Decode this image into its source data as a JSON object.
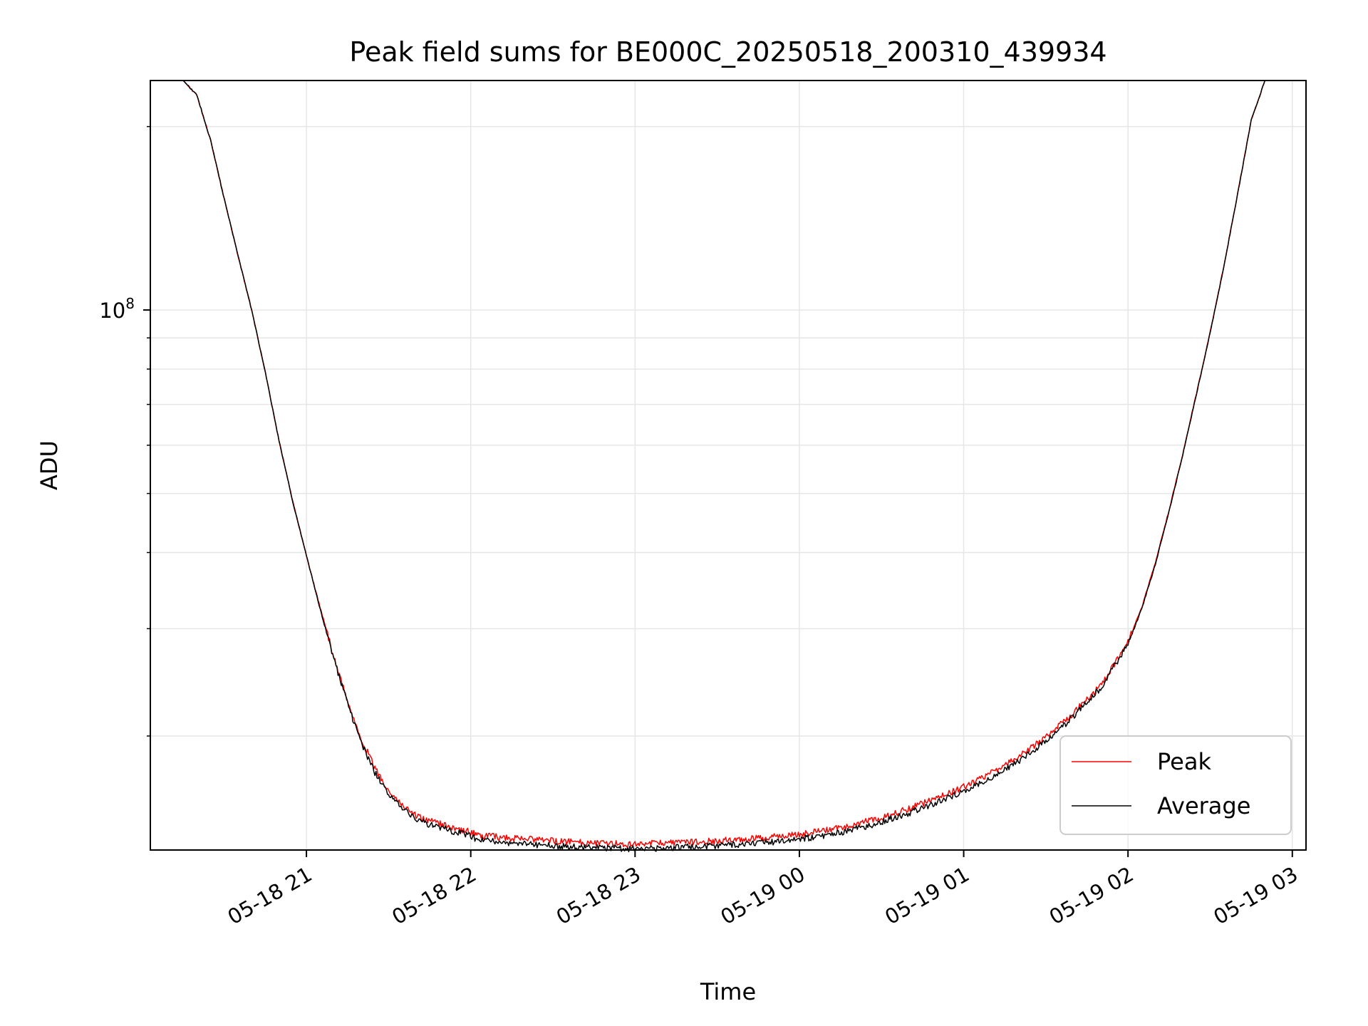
{
  "chart_data": {
    "type": "line",
    "title": "Peak field sums for BE000C_20250518_200310_439934",
    "xlabel": "Time",
    "ylabel": "ADU",
    "yscale": "log",
    "ylim": [
      13000000,
      238000000
    ],
    "xlim": [
      "2025-05-18 20:03",
      "2025-05-19 03:05"
    ],
    "xticks": [
      "05-18 21",
      "05-18 22",
      "05-18 23",
      "05-19 00",
      "05-19 01",
      "05-19 02",
      "05-19 03"
    ],
    "xtick_values": [
      "2025-05-18 21:00",
      "2025-05-18 22:00",
      "2025-05-18 23:00",
      "2025-05-19 00:00",
      "2025-05-19 01:00",
      "2025-05-19 02:00",
      "2025-05-19 03:00"
    ],
    "ytick_labels": [
      {
        "value": 100000000,
        "base": "10",
        "exp": "8"
      }
    ],
    "grid": true,
    "legend": {
      "placement": "bottom-right"
    },
    "x": [
      "2025-05-18 20:03",
      "2025-05-18 20:15",
      "2025-05-18 20:20",
      "2025-05-18 20:25",
      "2025-05-18 20:30",
      "2025-05-18 20:35",
      "2025-05-18 20:40",
      "2025-05-18 20:45",
      "2025-05-18 20:50",
      "2025-05-18 20:55",
      "2025-05-18 21:00",
      "2025-05-18 21:05",
      "2025-05-18 21:10",
      "2025-05-18 21:15",
      "2025-05-18 21:20",
      "2025-05-18 21:25",
      "2025-05-18 21:30",
      "2025-05-18 21:35",
      "2025-05-18 21:40",
      "2025-05-18 21:45",
      "2025-05-18 21:50",
      "2025-05-18 21:55",
      "2025-05-18 22:00",
      "2025-05-18 22:03",
      "2025-05-18 22:10",
      "2025-05-18 22:20",
      "2025-05-18 22:30",
      "2025-05-18 22:40",
      "2025-05-18 22:50",
      "2025-05-18 23:00",
      "2025-05-18 23:10",
      "2025-05-18 23:20",
      "2025-05-18 23:30",
      "2025-05-18 23:40",
      "2025-05-18 23:50",
      "2025-05-19 00:00",
      "2025-05-19 00:10",
      "2025-05-19 00:20",
      "2025-05-19 00:30",
      "2025-05-19 00:40",
      "2025-05-19 00:50",
      "2025-05-19 01:00",
      "2025-05-19 01:10",
      "2025-05-19 01:20",
      "2025-05-19 01:30",
      "2025-05-19 01:40",
      "2025-05-19 01:50",
      "2025-05-19 02:00",
      "2025-05-19 02:05",
      "2025-05-19 02:10",
      "2025-05-19 02:15",
      "2025-05-19 02:20",
      "2025-05-19 02:25",
      "2025-05-19 02:30",
      "2025-05-19 02:35",
      "2025-05-19 02:40",
      "2025-05-19 02:45",
      "2025-05-19 02:50",
      "2025-05-19 03:05"
    ],
    "series": [
      {
        "name": "Peak",
        "color": "#ff0000",
        "values": [
          238000000,
          238000000,
          225000000,
          190000000,
          152000000,
          123000000,
          100000000,
          79000000,
          61000000,
          48500000,
          39500000,
          32500000,
          27000000,
          22800000,
          19800000,
          17700000,
          16300000,
          15400000,
          14800000,
          14500000,
          14300000,
          14100000,
          13900000,
          13750000,
          13650000,
          13550000,
          13450000,
          13400000,
          13350000,
          13300000,
          13350000,
          13400000,
          13450000,
          13550000,
          13650000,
          13800000,
          14000000,
          14300000,
          14700000,
          15200000,
          15800000,
          16500000,
          17400000,
          18500000,
          19900000,
          21800000,
          24200000,
          28500000,
          32500000,
          38500000,
          47000000,
          58000000,
          73000000,
          92000000,
          118000000,
          155000000,
          205000000,
          238000000,
          238000000
        ]
      },
      {
        "name": "Average",
        "color": "#000000",
        "values": [
          238000000,
          238000000,
          225000000,
          190000000,
          152000000,
          123000000,
          100000000,
          79000000,
          61000000,
          48500000,
          39500000,
          32300000,
          26800000,
          22600000,
          19500000,
          17400000,
          16000000,
          15200000,
          14600000,
          14300000,
          14100000,
          13900000,
          13700000,
          13500000,
          13400000,
          13300000,
          13200000,
          13150000,
          13100000,
          13050000,
          13100000,
          13150000,
          13200000,
          13300000,
          13400000,
          13550000,
          13750000,
          14050000,
          14450000,
          14950000,
          15550000,
          16250000,
          17100000,
          18200000,
          19600000,
          21500000,
          24000000,
          28300000,
          32300000,
          38300000,
          46800000,
          57800000,
          72800000,
          91800000,
          117800000,
          154800000,
          204800000,
          238000000,
          238000000
        ]
      }
    ]
  }
}
